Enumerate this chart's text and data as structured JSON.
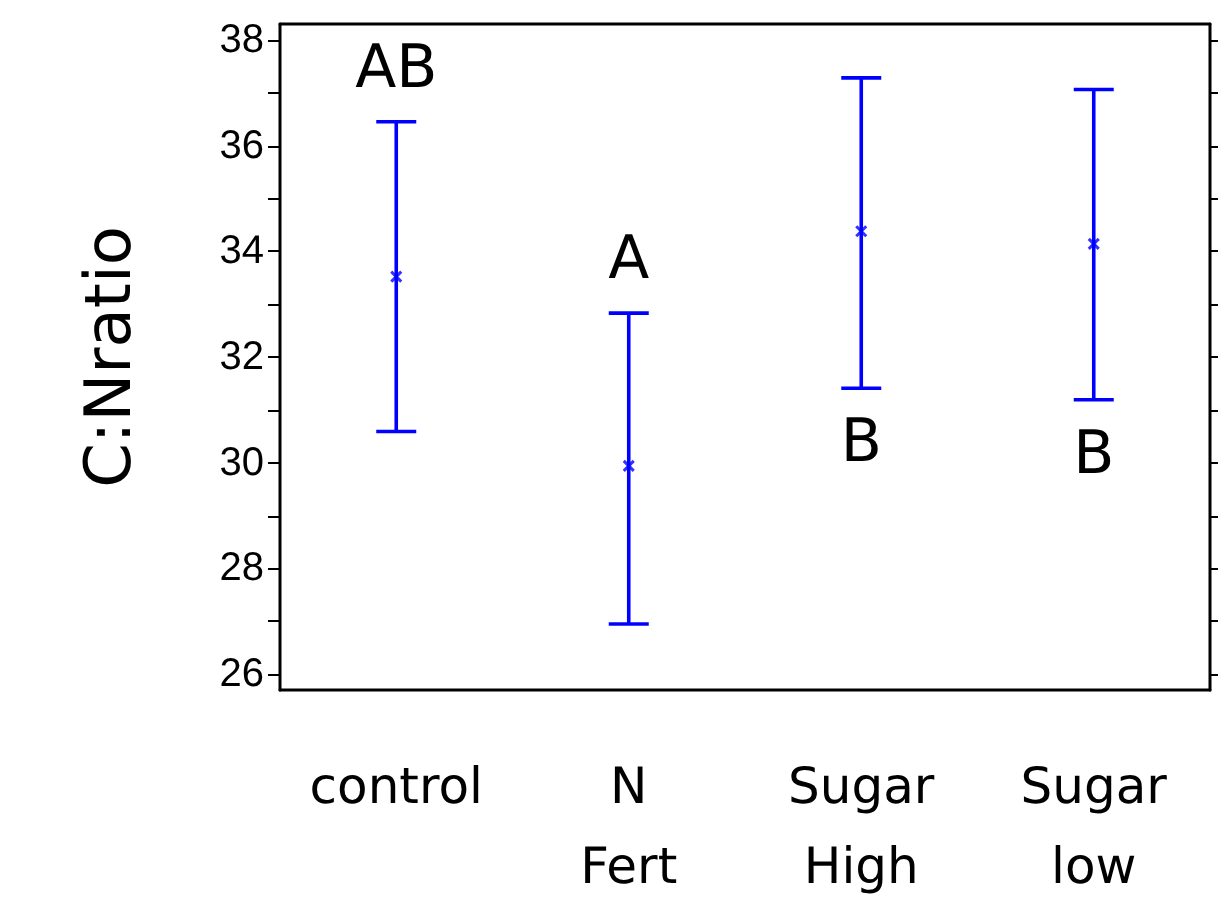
{
  "chart_data": {
    "type": "scatter",
    "ylabel": "C:Nratio",
    "categories": [
      "control",
      "N\nFert",
      "Sugar\nHigh",
      "Sugar\nlow"
    ],
    "series": [
      {
        "color": "#0000ff",
        "values": [
          33.52,
          29.94,
          34.38,
          34.14
        ],
        "errors": [
          [
            30.59,
            36.45
          ],
          [
            26.95,
            32.83
          ],
          [
            31.41,
            37.28
          ],
          [
            31.19,
            37.06
          ]
        ]
      }
    ],
    "ylim": [
      25.7,
      38.3
    ],
    "yticks": [
      26,
      28,
      30,
      32,
      34,
      36,
      38
    ],
    "grid": false,
    "marker": "cross",
    "annotations": [
      "AB",
      "A",
      "B",
      "B"
    ]
  }
}
